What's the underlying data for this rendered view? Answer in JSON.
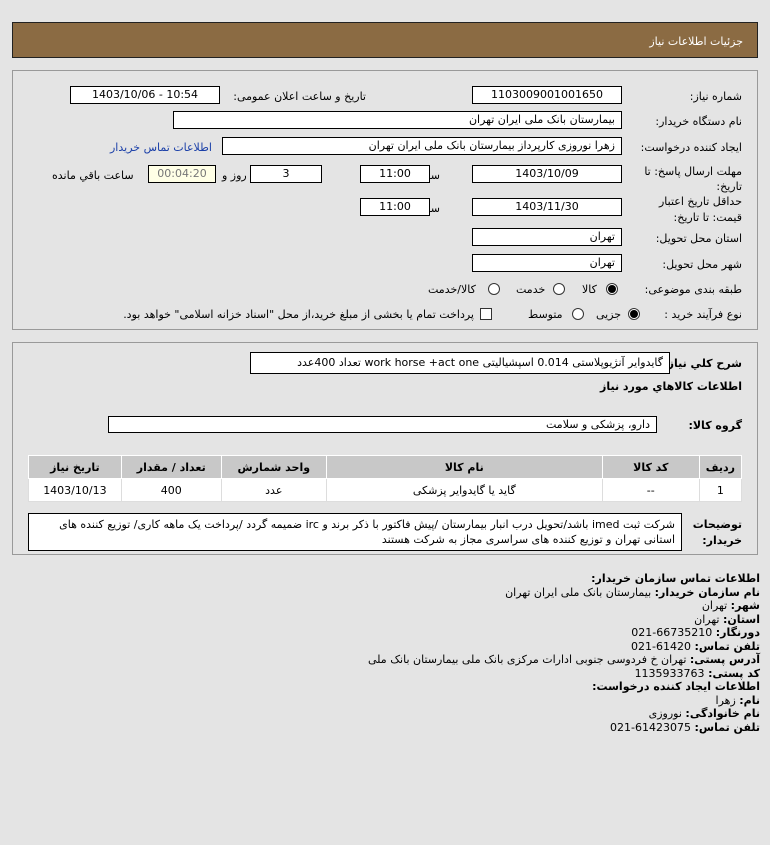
{
  "header": {
    "title": "جزئیات اطلاعات نیاز"
  },
  "form": {
    "need_number_label": "شماره نیاز:",
    "need_number": "1103009001001650",
    "announce_label": "تاریخ و ساعت اعلان عمومی:",
    "announce_value": "1403/10/06 - 10:54",
    "buyer_label": "نام دستگاه خریدار:",
    "buyer_value": "بیمارستان بانک ملی ایران تهران",
    "creator_label": "ایجاد کننده درخواست:",
    "creator_value": "زهرا نوروزی کارپرداز بیمارستان بانک ملی ایران تهران",
    "contact_link": "اطلاعات تماس خریدار",
    "deadline_label_1": "مهلت ارسال پاسخ: تا",
    "deadline_label_2": "تاریخ:",
    "deadline_date": "1403/10/09",
    "time_label": "ساعت",
    "deadline_time": "11:00",
    "days": "3",
    "days_label": "روز و",
    "remaining": "00:04:20",
    "remaining_label": "ساعت باقي مانده",
    "validity_label_1": "حداقل تاریخ اعتبار",
    "validity_label_2": "قیمت: تا تاریخ:",
    "validity_date": "1403/11/30",
    "validity_time": "11:00",
    "province_label": "استان محل تحویل:",
    "province": "تهران",
    "city_label": "شهر محل تحویل:",
    "city": "تهران",
    "category_label": "طبقه بندی موضوعی:",
    "category_options": [
      "کالا",
      "خدمت",
      "کالا/خدمت"
    ],
    "category_selected": "کالا",
    "process_label": "نوع فرآیند خرید :",
    "process_options": [
      "جزیی",
      "متوسط"
    ],
    "process_selected": "جزیی",
    "payment_note": "پرداخت تمام یا بخشی از مبلغ خرید،از محل \"اسناد خزانه اسلامی\" خواهد بود."
  },
  "goods": {
    "desc_label": "شرح کلي نياز:",
    "desc_value": "گایدوایر آنژیوپلاستی 0.014 اسپشیالیتی work horse +act one تعداد 400عدد",
    "section_title": "اطلاعات کالاهاي مورد نياز",
    "group_label": "گروه کالا:",
    "group_value": "دارو، پزشکی و سلامت",
    "columns": [
      "ردیف",
      "کد کالا",
      "نام کالا",
      "واحد شمارش",
      "تعداد / مقدار",
      "تاریخ نیاز"
    ],
    "rows": [
      [
        "1",
        "--",
        "گاید یا گایدوایر پزشکی",
        "عدد",
        "400",
        "1403/10/13"
      ]
    ],
    "notes_label_1": "توضیحات",
    "notes_label_2": "خریدار:",
    "notes": "شرکت ثبت imed باشد/تحویل درب انبار بیمارستان /پیش فاکتور با ذکر برند و irc ضمیمه گردد /پرداخت یک ماهه کاری/ توزیع کننده های استانی تهران و توزیع کننده های سراسری مجاز به شرکت هستند"
  },
  "contact": {
    "title": "اطلاعات تماس سازمان خریدار:",
    "org_label": "نام سازمان خریدار:",
    "org": "بیمارستان بانک ملی ایران تهران",
    "city_label": "شهر:",
    "city": "تهران",
    "province_label": "استان:",
    "province": "تهران",
    "fax_label": "دورنگار:",
    "fax": "66735210-021",
    "phone_label": "تلفن تماس:",
    "phone": "61420-021",
    "address_label": "آدرس پستی:",
    "address": "تهران خ فردوسی جنوبی ادارات مرکزی بانک ملی بیمارستان بانک ملی",
    "postal_label": "کد پستی:",
    "postal": "1135933763",
    "creator_title": "اطلاعات ایجاد کننده درخواست:",
    "name_label": "نام:",
    "name": "زهرا",
    "family_label": "نام خانوادگی:",
    "family": "نوروزی",
    "creator_phone_label": "تلفن تماس:",
    "creator_phone": "61423075-021"
  }
}
